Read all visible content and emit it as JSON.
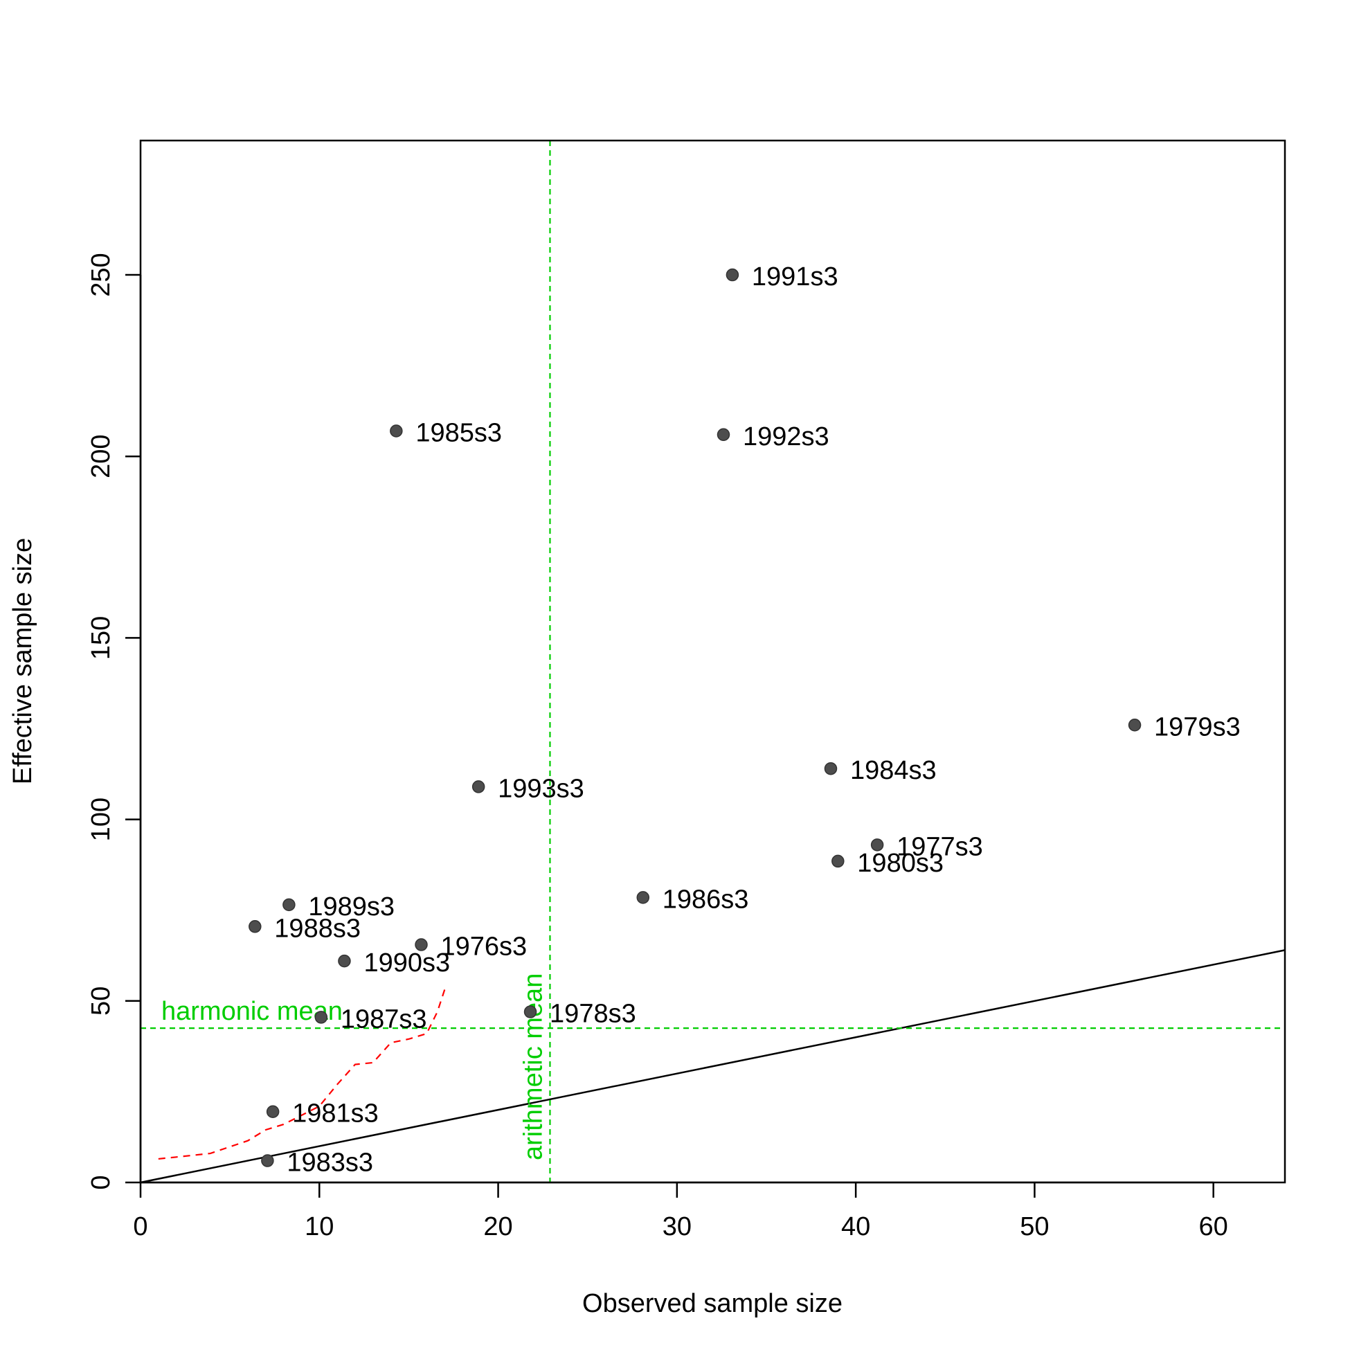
{
  "chart_data": {
    "type": "scatter",
    "xlabel": "Observed sample size",
    "ylabel": "Effective sample size",
    "xlim": [
      0,
      64
    ],
    "ylim": [
      0,
      287
    ],
    "x_ticks": [
      0,
      10,
      20,
      30,
      40,
      50,
      60
    ],
    "y_ticks": [
      0,
      50,
      100,
      150,
      200,
      250
    ],
    "grid": false,
    "legend": "none",
    "points": [
      {
        "label": "1991s3",
        "x": 33.1,
        "y": 250.0
      },
      {
        "label": "1985s3",
        "x": 14.3,
        "y": 207.0
      },
      {
        "label": "1992s3",
        "x": 32.6,
        "y": 206.0
      },
      {
        "label": "1979s3",
        "x": 55.6,
        "y": 126.0
      },
      {
        "label": "1984s3",
        "x": 38.6,
        "y": 114.0
      },
      {
        "label": "1993s3",
        "x": 18.9,
        "y": 109.0
      },
      {
        "label": "1977s3",
        "x": 41.2,
        "y": 93.0
      },
      {
        "label": "1980s3",
        "x": 39.0,
        "y": 88.5
      },
      {
        "label": "1986s3",
        "x": 28.1,
        "y": 78.5
      },
      {
        "label": "1989s3",
        "x": 8.3,
        "y": 76.5
      },
      {
        "label": "1988s3",
        "x": 6.4,
        "y": 70.5
      },
      {
        "label": "1976s3",
        "x": 15.7,
        "y": 65.5
      },
      {
        "label": "1990s3",
        "x": 11.4,
        "y": 61.0
      },
      {
        "label": "1978s3",
        "x": 21.8,
        "y": 47.0
      },
      {
        "label": "1987s3",
        "x": 10.1,
        "y": 45.5
      },
      {
        "label": "1981s3",
        "x": 7.4,
        "y": 19.5
      },
      {
        "label": "1983s3",
        "x": 7.1,
        "y": 6.0
      }
    ],
    "reference_line": {
      "slope": 1,
      "intercept": 0,
      "color": "#000000"
    },
    "harmonic_mean": {
      "label": "harmonic mean",
      "y": 42.5,
      "color": "#00cd00"
    },
    "arithmetic_mean": {
      "label": "arithmetic mean",
      "x": 22.9,
      "color": "#00cd00"
    },
    "red_dashed_curve": {
      "color": "#ff0000",
      "x": [
        1.0,
        2.0,
        3.9,
        6.0,
        7.0,
        8.0,
        9.0,
        10.0,
        11.0,
        12.0,
        13.0,
        14.0,
        15.0,
        16.0,
        16.6,
        17.1
      ],
      "y": [
        6.5,
        7.0,
        8.0,
        11.5,
        14.5,
        16.0,
        18.5,
        21.0,
        27.0,
        32.5,
        33.0,
        38.5,
        39.5,
        41.0,
        47.0,
        54.5
      ]
    },
    "point_color": "#4d4d4d"
  }
}
